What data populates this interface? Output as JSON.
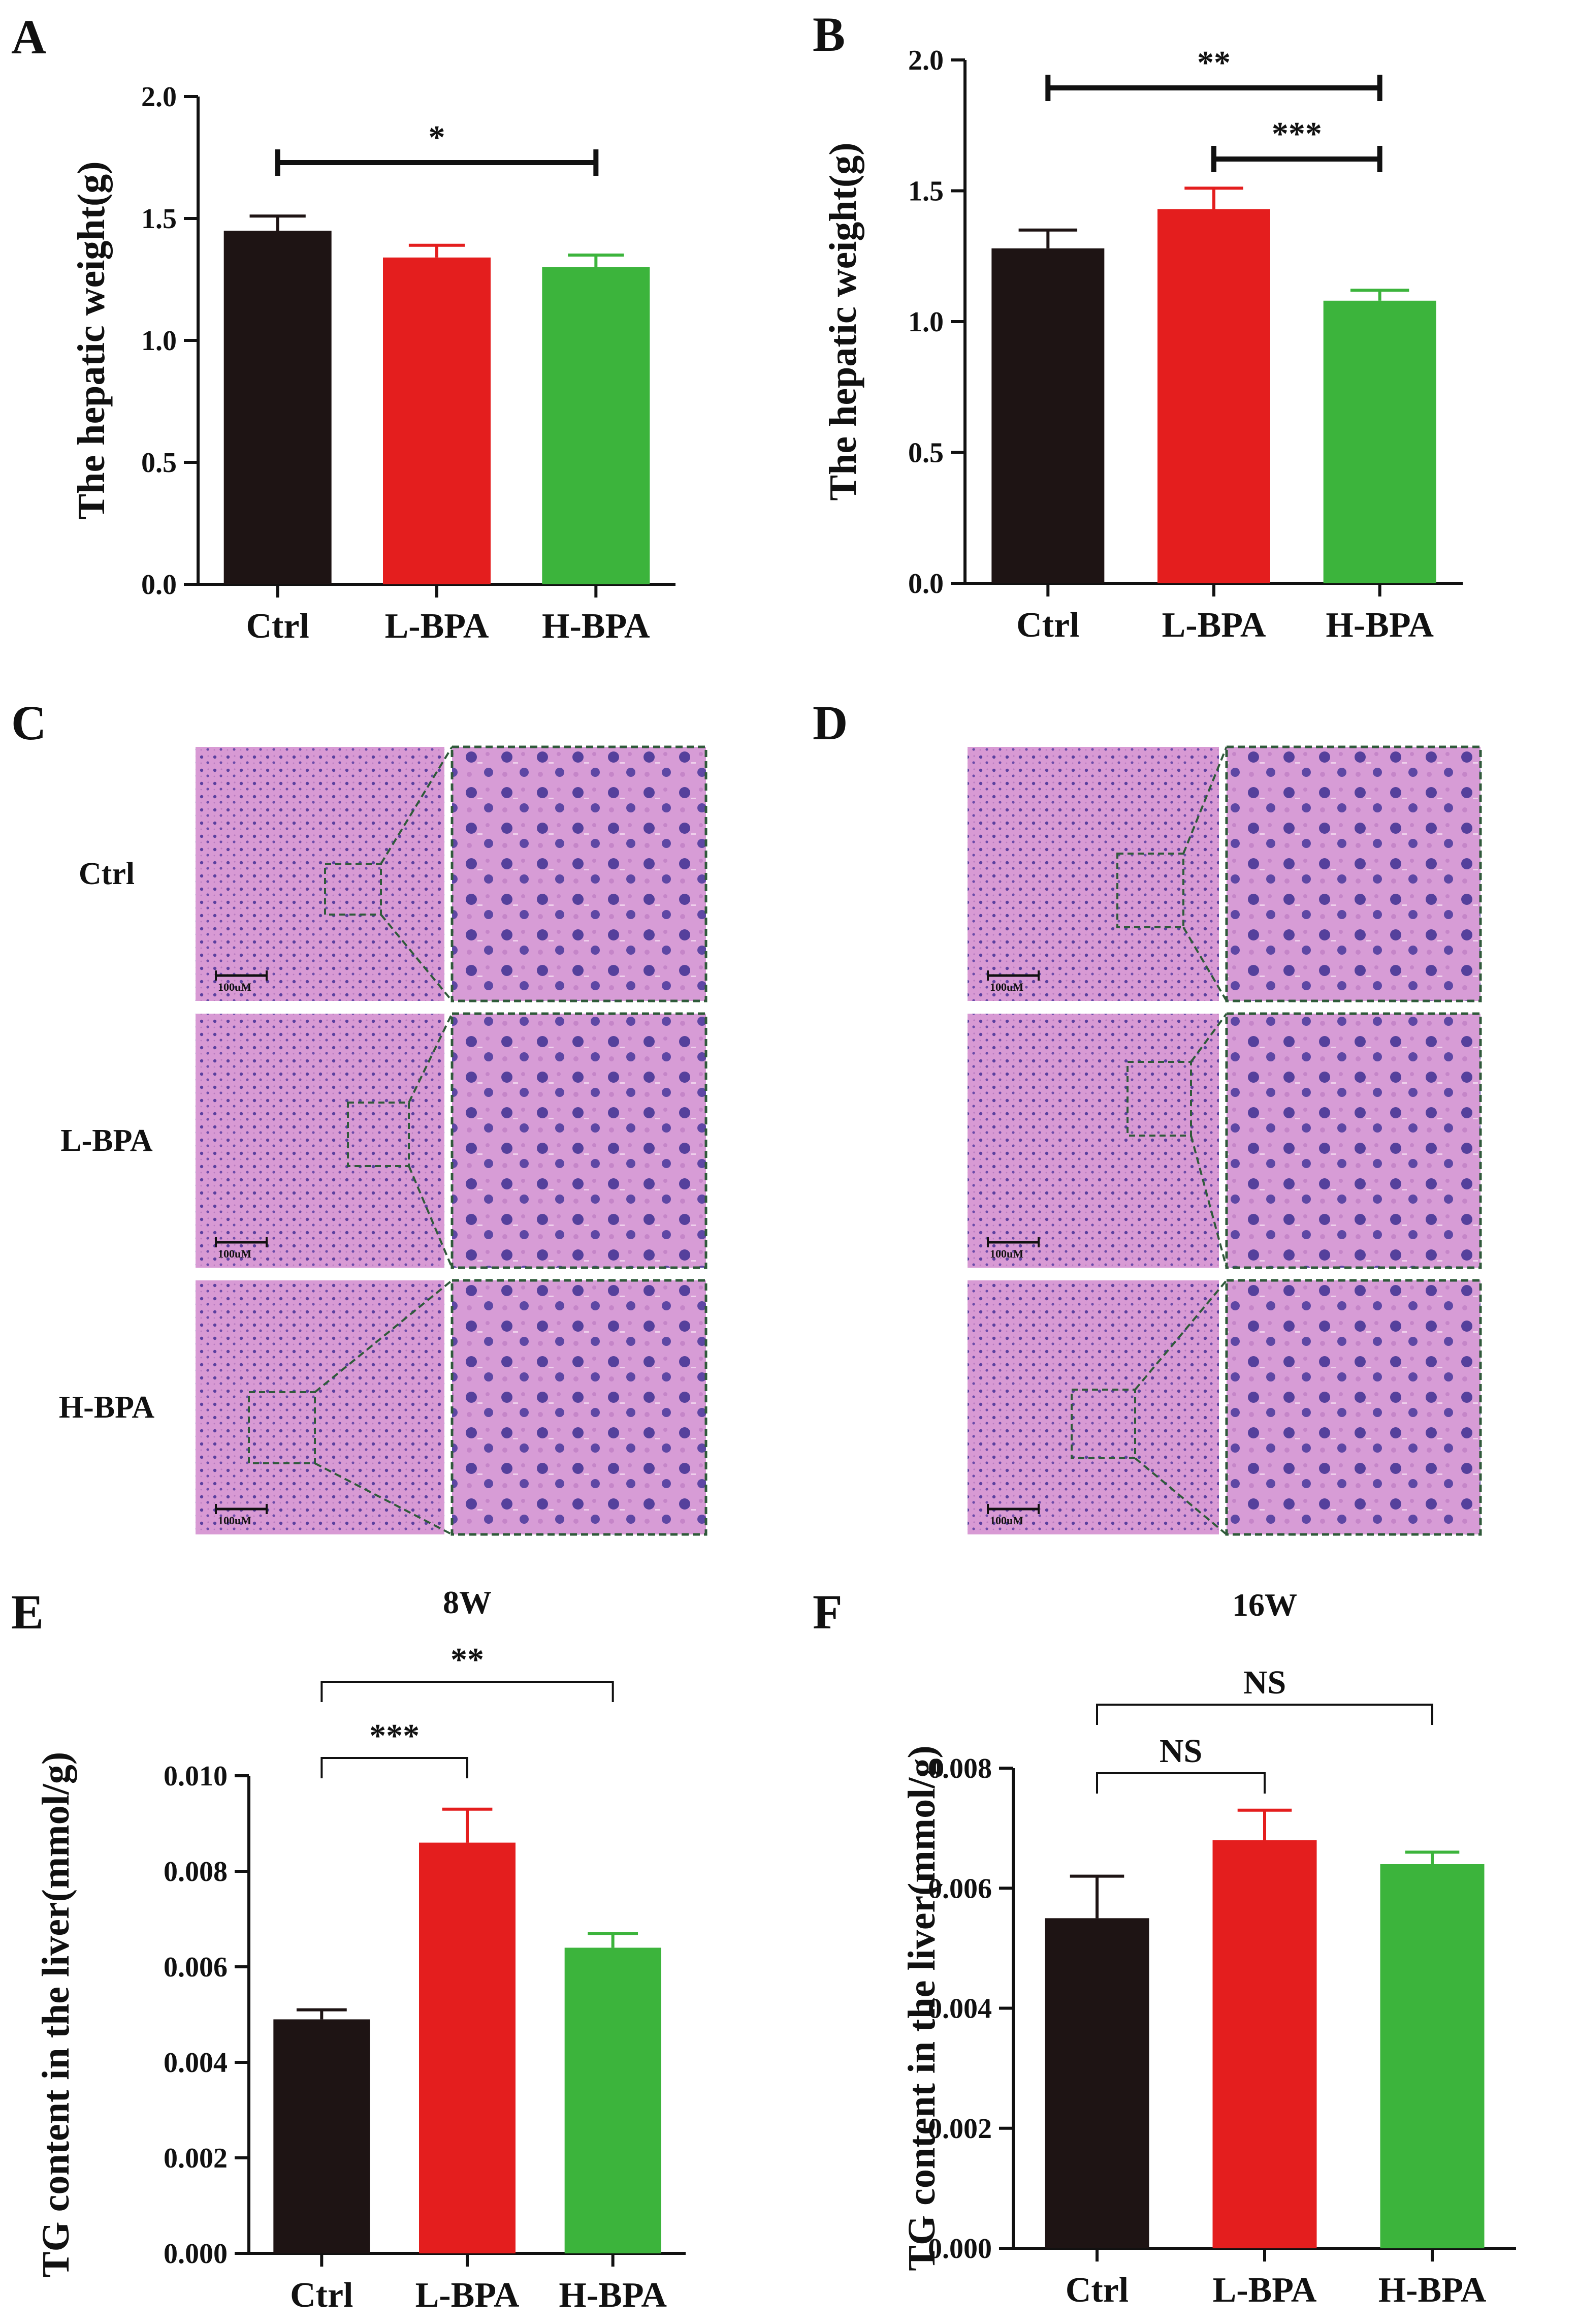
{
  "panels": {
    "A": "A",
    "B": "B",
    "C": "C",
    "D": "D",
    "E": "E",
    "F": "F"
  },
  "histology": {
    "groups": [
      "Ctrl",
      "L-BPA",
      "H-BPA"
    ],
    "scale_bar_label": "100uM",
    "colors": {
      "tissue": "#d89ad4",
      "tissue_dark": "#c47dc4",
      "nucleus": "#4b3c9a",
      "box": "#2f5a3a"
    }
  },
  "chart_data": [
    {
      "id": "A",
      "type": "bar",
      "title": "",
      "ylabel": "The hepatic weight(g)",
      "categories": [
        "Ctrl",
        "L-BPA",
        "H-BPA"
      ],
      "values": [
        1.45,
        1.34,
        1.3
      ],
      "errors": [
        0.06,
        0.05,
        0.05
      ],
      "colors": [
        "#1e1414",
        "#e41e1e",
        "#3cb43c"
      ],
      "ylim": [
        0.0,
        2.0
      ],
      "yticks": [
        0.0,
        0.5,
        1.0,
        1.5,
        2.0
      ],
      "ytick_labels": [
        "0.0",
        "0.5",
        "1.0",
        "1.5",
        "2.0"
      ],
      "significance": [
        {
          "from": 0,
          "to": 2,
          "label": "*",
          "style": "bold"
        }
      ]
    },
    {
      "id": "B",
      "type": "bar",
      "title": "",
      "ylabel": "The hepatic weight(g)",
      "categories": [
        "Ctrl",
        "L-BPA",
        "H-BPA"
      ],
      "values": [
        1.28,
        1.43,
        1.08
      ],
      "errors": [
        0.07,
        0.08,
        0.04
      ],
      "colors": [
        "#1e1414",
        "#e41e1e",
        "#3cb43c"
      ],
      "ylim": [
        0.0,
        2.0
      ],
      "yticks": [
        0.0,
        0.5,
        1.0,
        1.5,
        2.0
      ],
      "ytick_labels": [
        "0.0",
        "0.5",
        "1.0",
        "1.5",
        "2.0"
      ],
      "significance": [
        {
          "from": 0,
          "to": 2,
          "label": "**",
          "style": "bold"
        },
        {
          "from": 1,
          "to": 2,
          "label": "***",
          "style": "bold"
        }
      ]
    },
    {
      "id": "E",
      "type": "bar",
      "title": "8W",
      "ylabel": "TG content in the liver(mmol/g)",
      "categories": [
        "Ctrl",
        "L-BPA",
        "H-BPA"
      ],
      "values": [
        0.0049,
        0.0086,
        0.0064
      ],
      "errors": [
        0.0002,
        0.0007,
        0.0003
      ],
      "colors": [
        "#1e1414",
        "#e41e1e",
        "#3cb43c"
      ],
      "ylim": [
        0.0,
        0.01
      ],
      "yticks": [
        0.0,
        0.002,
        0.004,
        0.006,
        0.008,
        0.01
      ],
      "ytick_labels": [
        "0.000",
        "0.002",
        "0.004",
        "0.006",
        "0.008",
        "0.010"
      ],
      "significance": [
        {
          "from": 0,
          "to": 1,
          "label": "***",
          "style": "thin"
        },
        {
          "from": 0,
          "to": 2,
          "label": "**",
          "style": "thin"
        }
      ]
    },
    {
      "id": "F",
      "type": "bar",
      "title": "16W",
      "ylabel": "TG content in the liver(mmol/g)",
      "categories": [
        "Ctrl",
        "L-BPA",
        "H-BPA"
      ],
      "values": [
        0.0055,
        0.0068,
        0.0064
      ],
      "errors": [
        0.0007,
        0.0005,
        0.0002
      ],
      "colors": [
        "#1e1414",
        "#e41e1e",
        "#3cb43c"
      ],
      "ylim": [
        0.0,
        0.008
      ],
      "yticks": [
        0.0,
        0.002,
        0.004,
        0.006,
        0.008
      ],
      "ytick_labels": [
        "0.000",
        "0.002",
        "0.004",
        "0.006",
        "0.008"
      ],
      "significance": [
        {
          "from": 0,
          "to": 1,
          "label": "NS",
          "style": "thin"
        },
        {
          "from": 0,
          "to": 2,
          "label": "NS",
          "style": "thin"
        }
      ]
    }
  ]
}
